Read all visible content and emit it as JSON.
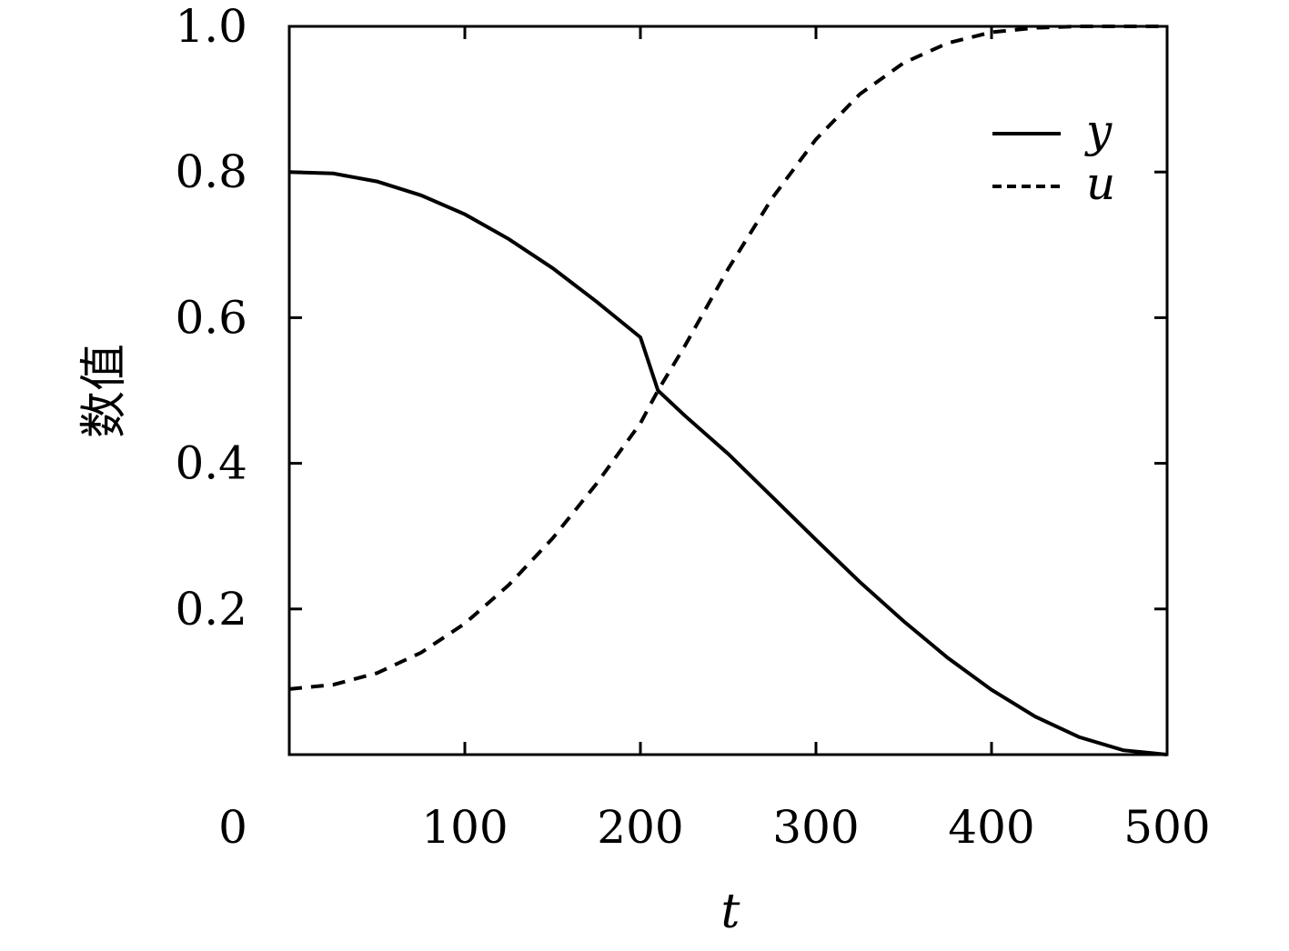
{
  "chart_data": {
    "type": "line",
    "xlabel": "t",
    "ylabel": "数值",
    "xlim": [
      0,
      500
    ],
    "ylim": [
      0,
      1.0
    ],
    "x_ticks": [
      0,
      100,
      200,
      300,
      400,
      500
    ],
    "x_tick_labels": [
      "0",
      "100",
      "200",
      "300",
      "400",
      "500"
    ],
    "y_ticks": [
      0.2,
      0.4,
      0.6,
      0.8,
      1.0
    ],
    "y_tick_labels": [
      "0.2",
      "0.4",
      "0.6",
      "0.8",
      "1.0"
    ],
    "grid": false,
    "legend_position": "top-right",
    "series": [
      {
        "name": "y",
        "style": "solid",
        "color": "#000000",
        "x": [
          0,
          25,
          50,
          75,
          100,
          125,
          150,
          175,
          200,
          210,
          225,
          250,
          275,
          300,
          325,
          350,
          375,
          400,
          425,
          450,
          475,
          500
        ],
        "y": [
          0.8,
          0.798,
          0.787,
          0.768,
          0.742,
          0.708,
          0.668,
          0.622,
          0.573,
          0.5,
          0.466,
          0.413,
          0.354,
          0.295,
          0.237,
          0.183,
          0.133,
          0.089,
          0.052,
          0.024,
          0.006,
          0.0
        ]
      },
      {
        "name": "u",
        "style": "dashed",
        "color": "#000000",
        "x": [
          0,
          25,
          50,
          75,
          100,
          125,
          150,
          175,
          200,
          210,
          225,
          250,
          275,
          300,
          325,
          350,
          375,
          400,
          425,
          450,
          475,
          500
        ],
        "y": [
          0.09,
          0.096,
          0.112,
          0.14,
          0.18,
          0.233,
          0.297,
          0.372,
          0.455,
          0.5,
          0.56,
          0.667,
          0.764,
          0.845,
          0.907,
          0.95,
          0.977,
          0.992,
          0.998,
          1.0,
          1.0,
          1.0
        ]
      }
    ]
  }
}
